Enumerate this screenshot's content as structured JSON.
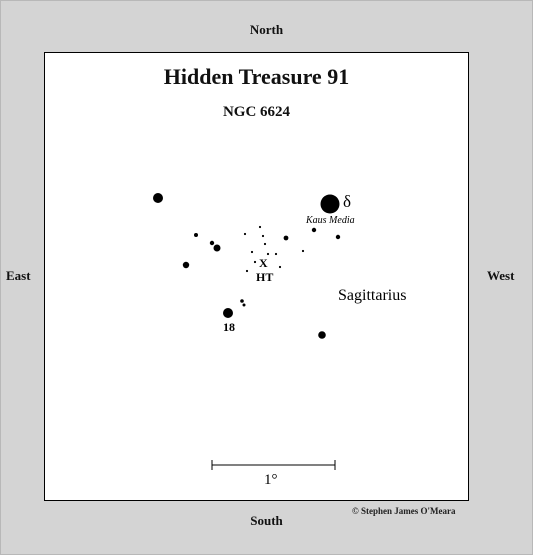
{
  "title": "Hidden Treasure 91",
  "subtitle": "NGC 6624",
  "directions": {
    "north": "North",
    "south": "South",
    "east": "East",
    "west": "West"
  },
  "credit": "© Stephen James O'Meara",
  "labels": {
    "delta": "δ",
    "kaus_media": "Kaus Media",
    "object_marker": "X",
    "ht": "HT",
    "star_18": "18",
    "constellation": "Sagittarius",
    "scale": "1°"
  },
  "colors": {
    "background": "#d4d4d4",
    "panel": "#ffffff",
    "ink": "#000000"
  }
}
